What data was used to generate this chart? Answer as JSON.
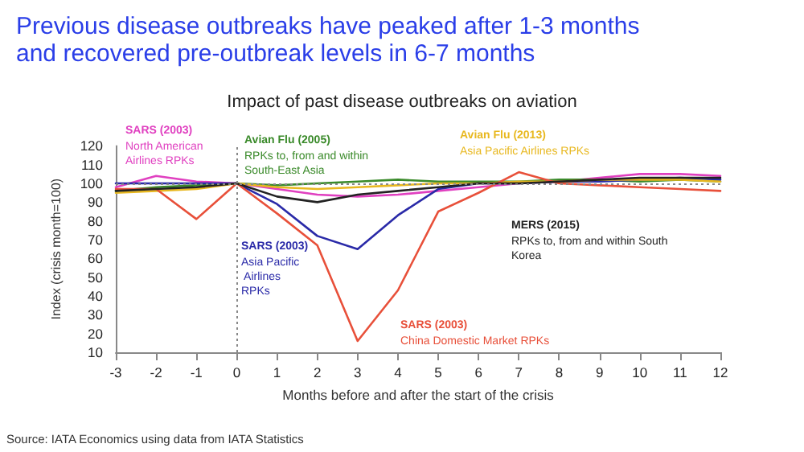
{
  "chart_data": {
    "type": "line",
    "title": "Previous disease outbreaks have peaked after 1-3 months and recovered pre-outbreak levels in 6-7 months",
    "subtitle": "Impact of past disease outbreaks on aviation",
    "xlabel": "Months before and after the start of the crisis",
    "ylabel": "Index (crisis month=100)",
    "x": [
      -3,
      -2,
      -1,
      0,
      1,
      2,
      3,
      4,
      5,
      6,
      7,
      8,
      9,
      10,
      11,
      12
    ],
    "series": [
      {
        "name": "SARS (2003)\nNorth American Airlines RPKs",
        "color": "#e040c0",
        "values": [
          98,
          104,
          101,
          100,
          97,
          94,
          93,
          94,
          96,
          98,
          100,
          101,
          103,
          105,
          105,
          104
        ]
      },
      {
        "name": "Avian Flu (2005)\nRPKs to, from and within South-East Asia",
        "color": "#3a8a2a",
        "values": [
          96,
          98,
          99,
          100,
          99,
          100,
          101,
          102,
          101,
          101,
          101,
          102,
          102,
          101,
          102,
          101
        ]
      },
      {
        "name": "SARS (2003)\nAsia Pacific Airlines RPKs",
        "color": "#2a2aa8",
        "values": [
          100,
          100,
          100,
          100,
          89,
          72,
          65,
          83,
          97,
          100,
          100,
          101,
          101,
          102,
          103,
          102
        ]
      },
      {
        "name": "Avian Flu (2013)\nAsia Pacific Airlines RPKs",
        "color": "#e8b820",
        "values": [
          95,
          96,
          97,
          100,
          98,
          97,
          98,
          99,
          100,
          100,
          101,
          101,
          102,
          102,
          102,
          101
        ]
      },
      {
        "name": "SARS (2003)\nChina Domestic Market RPKs",
        "color": "#e8503a",
        "values": [
          97,
          97,
          81,
          100,
          84,
          67,
          16,
          43,
          85,
          95,
          106,
          100,
          99,
          98,
          97,
          96
        ]
      },
      {
        "name": "MERS (2015)\nRPKs to, from and within South Korea",
        "color": "#222222",
        "values": [
          96,
          97,
          98,
          100,
          93,
          90,
          94,
          96,
          98,
          100,
          100,
          101,
          102,
          103,
          103,
          103
        ]
      }
    ],
    "xlim": [
      -3,
      12
    ],
    "xticks": [
      -3,
      -2,
      -1,
      0,
      1,
      2,
      3,
      4,
      5,
      6,
      7,
      8,
      9,
      10,
      11,
      12
    ],
    "ylim": [
      10,
      120
    ],
    "yticks": [
      10,
      20,
      30,
      40,
      50,
      60,
      70,
      80,
      90,
      100,
      110,
      120
    ],
    "ref_lines": [
      {
        "axis": "x",
        "value": 0,
        "label": null,
        "color": "#888888",
        "line_style": "dotted"
      },
      {
        "axis": "y",
        "value": 100,
        "label": null,
        "color": "#888888",
        "line_style": "dotted"
      }
    ],
    "grid": false,
    "legend": false,
    "marker": "none",
    "line_style": "solid",
    "annotations": [
      "Source: IATA Economics using data from IATA Statistics"
    ]
  }
}
